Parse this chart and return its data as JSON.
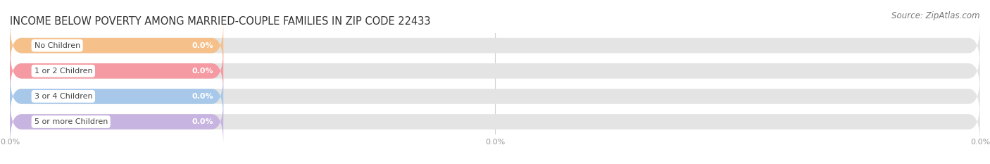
{
  "title": "INCOME BELOW POVERTY AMONG MARRIED-COUPLE FAMILIES IN ZIP CODE 22433",
  "source": "Source: ZipAtlas.com",
  "categories": [
    "No Children",
    "1 or 2 Children",
    "3 or 4 Children",
    "5 or more Children"
  ],
  "values": [
    0.0,
    0.0,
    0.0,
    0.0
  ],
  "bar_colors": [
    "#f5c08a",
    "#f59aa2",
    "#a8c8ea",
    "#c8b4e0"
  ],
  "bar_bg_color": "#e4e4e4",
  "title_fontsize": 10.5,
  "label_fontsize": 8,
  "value_fontsize": 8,
  "source_fontsize": 8.5,
  "xlim": [
    0,
    100
  ],
  "fig_bg_color": "#ffffff",
  "tick_label_color": "#999999",
  "bar_height": 0.6,
  "grid_color": "#d0d0d0",
  "label_text_color": "#444444",
  "value_text_color": "#ffffff"
}
